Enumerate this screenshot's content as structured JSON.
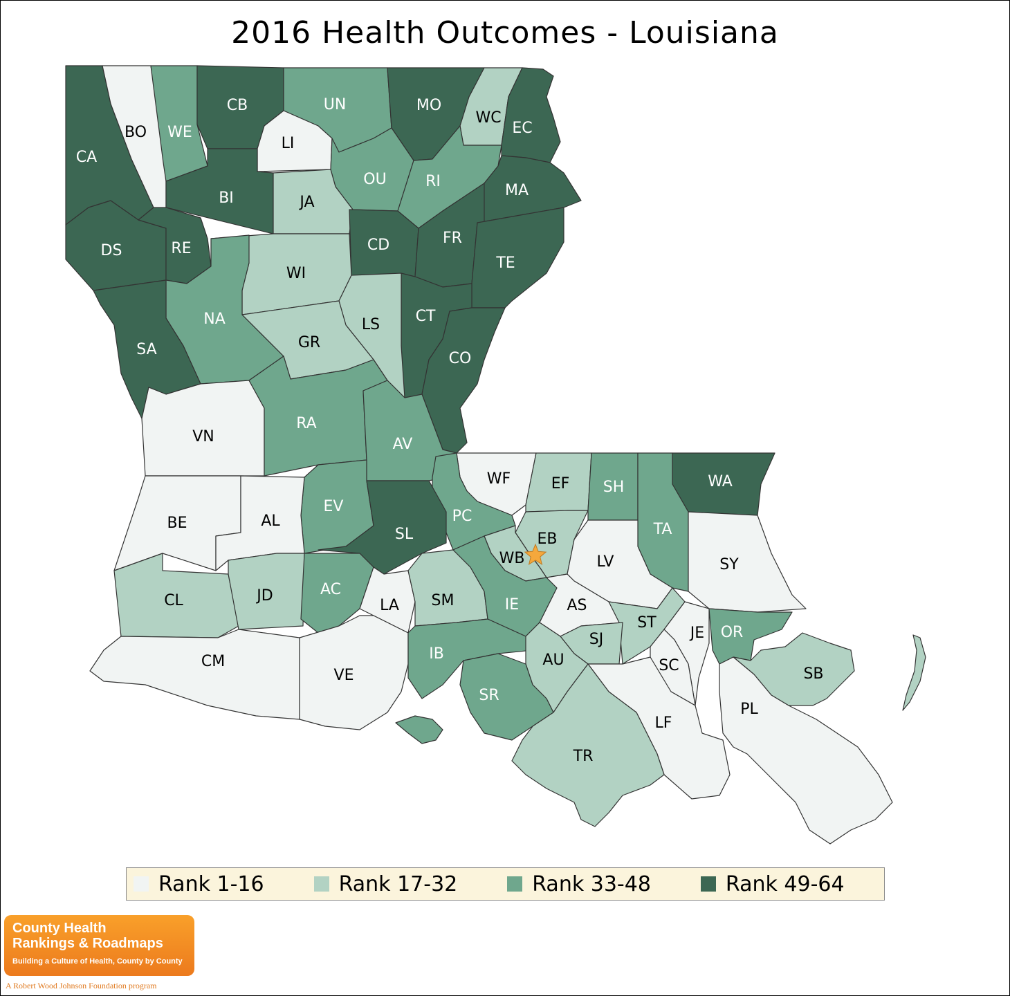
{
  "title": "2016 Health Outcomes - Louisiana",
  "legend": [
    {
      "label": "Rank 1-16",
      "color": "#f1f4f3"
    },
    {
      "label": "Rank 17-32",
      "color": "#b2d2c3"
    },
    {
      "label": "Rank 33-48",
      "color": "#6fa78d"
    },
    {
      "label": "Rank 49-64",
      "color": "#3c6753"
    }
  ],
  "highlight_marker": {
    "icon": "star-icon",
    "color": "#f5a83c",
    "parish": "EB"
  },
  "parishes": [
    {
      "code": "CA",
      "rank_group": 4
    },
    {
      "code": "BO",
      "rank_group": 1
    },
    {
      "code": "WE",
      "rank_group": 3
    },
    {
      "code": "CB",
      "rank_group": 4
    },
    {
      "code": "UN",
      "rank_group": 3
    },
    {
      "code": "MO",
      "rank_group": 4
    },
    {
      "code": "WC",
      "rank_group": 2
    },
    {
      "code": "EC",
      "rank_group": 4
    },
    {
      "code": "LI",
      "rank_group": 1
    },
    {
      "code": "BI",
      "rank_group": 4
    },
    {
      "code": "OU",
      "rank_group": 3
    },
    {
      "code": "RI",
      "rank_group": 3
    },
    {
      "code": "MA",
      "rank_group": 4
    },
    {
      "code": "JA",
      "rank_group": 2
    },
    {
      "code": "DS",
      "rank_group": 4
    },
    {
      "code": "RE",
      "rank_group": 4
    },
    {
      "code": "CD",
      "rank_group": 4
    },
    {
      "code": "FR",
      "rank_group": 4
    },
    {
      "code": "TE",
      "rank_group": 4
    },
    {
      "code": "WI",
      "rank_group": 2
    },
    {
      "code": "NA",
      "rank_group": 3
    },
    {
      "code": "CT",
      "rank_group": 4
    },
    {
      "code": "LS",
      "rank_group": 2
    },
    {
      "code": "GR",
      "rank_group": 2
    },
    {
      "code": "SA",
      "rank_group": 4
    },
    {
      "code": "CO",
      "rank_group": 4
    },
    {
      "code": "VN",
      "rank_group": 1
    },
    {
      "code": "RA",
      "rank_group": 3
    },
    {
      "code": "AV",
      "rank_group": 3
    },
    {
      "code": "WF",
      "rank_group": 1
    },
    {
      "code": "EF",
      "rank_group": 2
    },
    {
      "code": "SH",
      "rank_group": 3
    },
    {
      "code": "WA",
      "rank_group": 4
    },
    {
      "code": "EV",
      "rank_group": 3
    },
    {
      "code": "PC",
      "rank_group": 3
    },
    {
      "code": "BE",
      "rank_group": 1
    },
    {
      "code": "AL",
      "rank_group": 1
    },
    {
      "code": "SL",
      "rank_group": 4
    },
    {
      "code": "EB",
      "rank_group": 2
    },
    {
      "code": "TA",
      "rank_group": 3
    },
    {
      "code": "WB",
      "rank_group": 2
    },
    {
      "code": "LV",
      "rank_group": 1
    },
    {
      "code": "SY",
      "rank_group": 1
    },
    {
      "code": "CL",
      "rank_group": 2
    },
    {
      "code": "JD",
      "rank_group": 2
    },
    {
      "code": "AC",
      "rank_group": 3
    },
    {
      "code": "LA",
      "rank_group": 1
    },
    {
      "code": "SM",
      "rank_group": 2
    },
    {
      "code": "IE",
      "rank_group": 3
    },
    {
      "code": "AS",
      "rank_group": 1
    },
    {
      "code": "ST",
      "rank_group": 2
    },
    {
      "code": "SJ",
      "rank_group": 2
    },
    {
      "code": "JE",
      "rank_group": 1
    },
    {
      "code": "OR",
      "rank_group": 3
    },
    {
      "code": "CM",
      "rank_group": 1
    },
    {
      "code": "VE",
      "rank_group": 1
    },
    {
      "code": "IB",
      "rank_group": 3
    },
    {
      "code": "AU",
      "rank_group": 2
    },
    {
      "code": "SC",
      "rank_group": 1
    },
    {
      "code": "SB",
      "rank_group": 2
    },
    {
      "code": "SR",
      "rank_group": 3
    },
    {
      "code": "LF",
      "rank_group": 1
    },
    {
      "code": "PL",
      "rank_group": 1
    },
    {
      "code": "TR",
      "rank_group": 2
    }
  ],
  "logo": {
    "line1": "County Health",
    "line1b": "Rankings & Roadmaps",
    "line2": "Building a Culture of Health, County by County",
    "footer": "A Robert Wood Johnson Foundation program"
  }
}
